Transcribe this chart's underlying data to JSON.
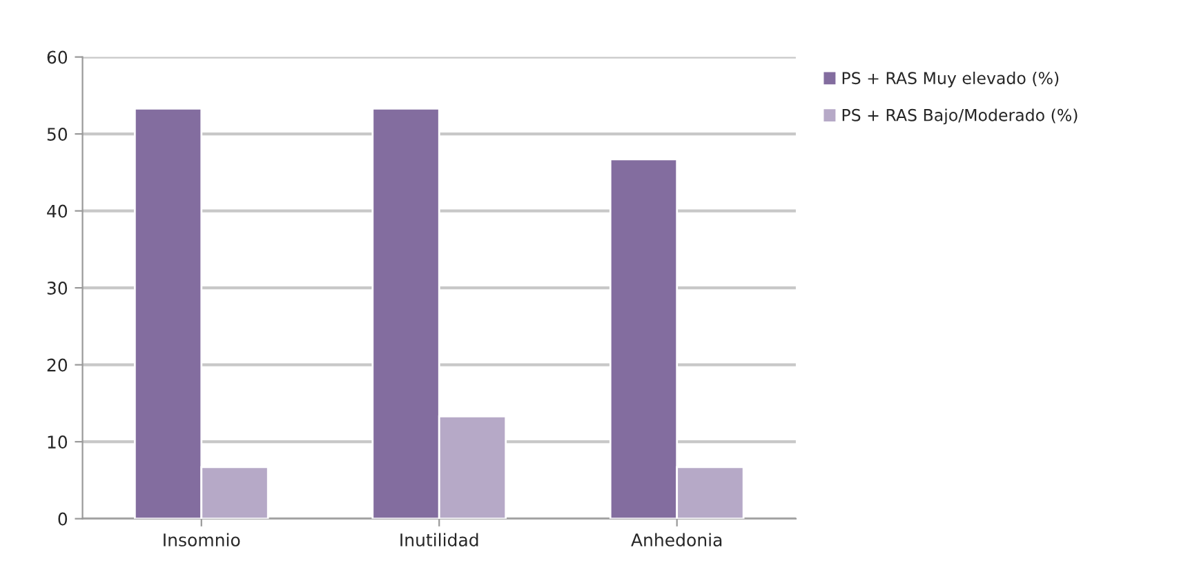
{
  "chart_data": {
    "type": "bar",
    "categories": [
      "Insomnio",
      "Inutilidad",
      "Anhedonia"
    ],
    "series": [
      {
        "name": "PS + RAS Muy elevado (%)",
        "color": "#836d9f",
        "values": [
          53.3,
          53.3,
          46.7
        ]
      },
      {
        "name": "PS + RAS Bajo/Moderado (%)",
        "color": "#b6a9c7",
        "values": [
          6.7,
          13.3,
          6.7
        ]
      }
    ],
    "ylim": [
      0,
      60
    ],
    "yticks": [
      0,
      10,
      20,
      30,
      40,
      50,
      60
    ],
    "grid": "y",
    "legend": "top right"
  }
}
